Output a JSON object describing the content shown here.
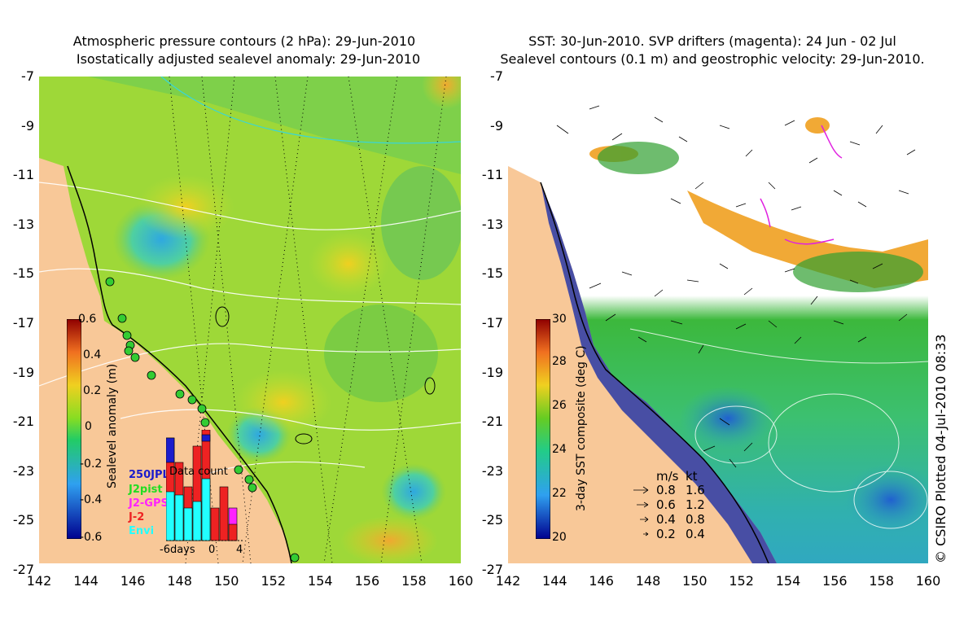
{
  "left_panel": {
    "title_line1": "Atmospheric pressure contours (2 hPa): 29-Jun-2010",
    "title_line2": "Isostatically adjusted sealevel anomaly: 29-Jun-2010",
    "colorbar_label": "Sealevel anomaly (m)",
    "colorbar_ticks": [
      "0.6",
      "0.4",
      "0.2",
      "0",
      "-0.2",
      "-0.4",
      "-0.6"
    ],
    "data_count": {
      "title": "Data count",
      "legend": [
        {
          "label": "250JPL",
          "color": "#1b1bcc"
        },
        {
          "label": "J2pist",
          "color": "#22dd22"
        },
        {
          "label": "J2-GPS",
          "color": "#ff22ff"
        },
        {
          "label": "J-2",
          "color": "#ee2222"
        },
        {
          "label": "Envi",
          "color": "#22ffff"
        }
      ],
      "axis_labels": [
        "-6days",
        "0",
        "4"
      ]
    }
  },
  "right_panel": {
    "title_line1": "SST: 30-Jun-2010. SVP drifters (magenta): 24 Jun - 02 Jul",
    "title_line2": "Sealevel contours (0.1 m) and geostrophic velocity: 29-Jun-2010.",
    "colorbar_label": "3-day SST composite (deg C)",
    "colorbar_ticks": [
      "30",
      "28",
      "26",
      "24",
      "22",
      "20"
    ],
    "speed_legend": {
      "header_ms": "m/s",
      "header_kt": "kt",
      "rows": [
        {
          "ms": "0.8",
          "kt": "1.6"
        },
        {
          "ms": "0.6",
          "kt": "1.2"
        },
        {
          "ms": "0.4",
          "kt": "0.8"
        },
        {
          "ms": "0.2",
          "kt": "0.4"
        }
      ]
    }
  },
  "axes": {
    "lat_ticks": [
      "-7",
      "-9",
      "-11",
      "-13",
      "-15",
      "-17",
      "-19",
      "-21",
      "-23",
      "-25",
      "-27"
    ],
    "lon_ticks": [
      "142",
      "144",
      "146",
      "148",
      "150",
      "152",
      "154",
      "156",
      "158",
      "160"
    ]
  },
  "credit": "© CSIRO Plotted 04-Jul-2010 08:33",
  "colors": {
    "land": "#f8c898",
    "ocean_green": "#7ed04a",
    "sst_cold": "#1c2fa8",
    "sst_warm": "#f0a020"
  }
}
